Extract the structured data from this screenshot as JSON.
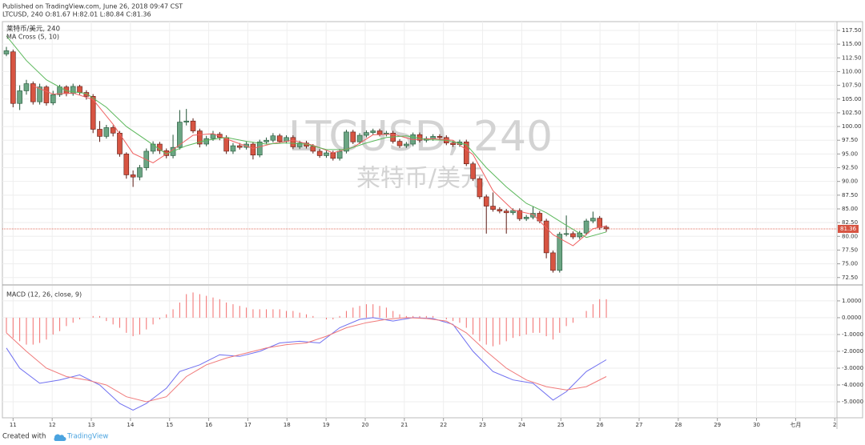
{
  "header": {
    "published": "Published on TradingView.com, June 26, 2018 09:47 CST",
    "ohlc": "LTCUSD, 240 O:81.67 H:82.01 L:80.84 C:81.36"
  },
  "footer": {
    "created": "Created with",
    "brand": "TradingView"
  },
  "chart_data": [
    {
      "type": "candlestick",
      "title": "莱特币/美元, 240",
      "indicator": "MA Cross (5, 10)",
      "watermark": [
        "LTCUSD, 240",
        "莱特币/美元"
      ],
      "up_color": "#6ba583",
      "down_color": "#d75442",
      "open": [
        113.2,
        113.6,
        104.2,
        106.5,
        107.8,
        104.5,
        107.2,
        104.3,
        105.8,
        107.2,
        106.0,
        107.3,
        106.2,
        105.5,
        99.5,
        98.2,
        99.8,
        98.8,
        95.0,
        91.2,
        90.8,
        92.5,
        95.5,
        96.8,
        95.6,
        94.7,
        96.2,
        100.8,
        101.0,
        99.2,
        96.8,
        97.8,
        98.6,
        98.0,
        95.5,
        96.5,
        96.2,
        96.8,
        94.8,
        97.2,
        97.5,
        98.3,
        97.3,
        98.0,
        96.3,
        97.0,
        96.4,
        95.5,
        94.7,
        95.2,
        94.2,
        95.5,
        99.0,
        97.2,
        98.4,
        98.9,
        99.2,
        98.6,
        98.8,
        97.3,
        96.5,
        96.8,
        98.5,
        97.5,
        97.8,
        98.2,
        98.0,
        97.0,
        96.7,
        97.2,
        93.2,
        90.5,
        87.2,
        85.5,
        84.9,
        84.6,
        84.3,
        84.7,
        83.2,
        83.5,
        84.2,
        82.8,
        77.0,
        73.8,
        80.4,
        80.5,
        79.9,
        80.6,
        82.8,
        83.3,
        81.67
      ],
      "high": [
        114.5,
        114.0,
        107.5,
        108.5,
        108.2,
        107.8,
        107.5,
        106.5,
        107.6,
        107.5,
        107.8,
        107.6,
        106.6,
        105.9,
        101.0,
        100.3,
        100.2,
        99.2,
        95.3,
        92.0,
        93.0,
        96.0,
        97.3,
        97.2,
        96.0,
        98.5,
        103.0,
        103.2,
        101.5,
        99.6,
        98.3,
        99.2,
        99.0,
        98.4,
        97.0,
        97.0,
        97.3,
        97.2,
        97.6,
        98.0,
        98.8,
        98.7,
        98.4,
        98.4,
        97.4,
        97.4,
        96.8,
        95.9,
        95.6,
        95.6,
        95.9,
        99.4,
        99.4,
        98.8,
        99.3,
        99.6,
        99.6,
        99.2,
        99.2,
        97.7,
        97.2,
        98.9,
        98.9,
        98.2,
        98.6,
        98.6,
        98.4,
        97.4,
        97.6,
        97.6,
        93.6,
        90.9,
        87.6,
        88.0,
        85.3,
        85.0,
        85.1,
        85.1,
        83.9,
        85.5,
        84.6,
        83.2,
        77.4,
        80.8,
        83.8,
        80.9,
        81.0,
        83.2,
        84.5,
        83.7,
        82.01
      ],
      "low": [
        112.8,
        103.5,
        103.0,
        105.8,
        104.0,
        104.0,
        103.8,
        103.9,
        105.4,
        105.5,
        105.6,
        105.8,
        104.9,
        98.8,
        97.2,
        97.8,
        98.2,
        94.5,
        90.5,
        89.0,
        90.2,
        92.0,
        95.0,
        95.0,
        94.2,
        94.2,
        95.8,
        100.2,
        98.8,
        96.2,
        96.4,
        97.4,
        97.5,
        95.0,
        95.0,
        95.8,
        95.8,
        94.0,
        94.4,
        96.8,
        97.1,
        96.9,
        96.9,
        95.9,
        95.9,
        96.0,
        95.1,
        94.3,
        94.3,
        93.8,
        93.8,
        95.1,
        96.8,
        96.8,
        98.0,
        98.5,
        98.2,
        98.2,
        96.9,
        96.1,
        96.1,
        96.4,
        97.1,
        97.1,
        97.4,
        97.6,
        96.6,
        96.3,
        96.3,
        92.8,
        90.1,
        86.8,
        80.5,
        84.5,
        84.2,
        80.5,
        83.9,
        82.8,
        82.8,
        83.1,
        82.4,
        76.0,
        73.4,
        73.4,
        80.0,
        79.5,
        79.5,
        80.2,
        82.4,
        81.2,
        80.84
      ],
      "close": [
        113.8,
        104.2,
        106.5,
        107.8,
        104.5,
        107.2,
        104.3,
        105.8,
        107.2,
        106.0,
        107.3,
        106.2,
        105.5,
        99.5,
        98.2,
        99.8,
        98.8,
        95.0,
        91.2,
        90.8,
        92.5,
        95.5,
        96.8,
        95.6,
        94.7,
        96.2,
        100.8,
        101.0,
        99.2,
        96.8,
        97.8,
        98.6,
        98.0,
        95.5,
        96.5,
        96.2,
        96.8,
        94.8,
        97.2,
        97.5,
        98.3,
        97.3,
        98.0,
        96.3,
        97.0,
        96.4,
        95.5,
        94.7,
        95.2,
        94.2,
        95.5,
        99.0,
        97.2,
        98.4,
        98.9,
        99.2,
        98.6,
        98.8,
        97.3,
        96.5,
        96.8,
        98.5,
        97.5,
        97.8,
        98.2,
        98.0,
        97.0,
        96.7,
        97.2,
        93.2,
        90.5,
        87.2,
        85.5,
        84.9,
        84.6,
        84.3,
        84.7,
        83.2,
        83.5,
        84.2,
        82.8,
        77.0,
        73.8,
        80.4,
        80.5,
        79.9,
        80.6,
        82.8,
        83.3,
        81.6,
        81.36
      ],
      "series": [
        {
          "color": "#f06060",
          "x": [
            4,
            7,
            10,
            13,
            16,
            19,
            22,
            25,
            28,
            31,
            34,
            37,
            40,
            43,
            46,
            49,
            52,
            55,
            58,
            61,
            64,
            67,
            70,
            73,
            76,
            79,
            82,
            85,
            88,
            90
          ],
          "values": [
            107.4,
            105.9,
            106.1,
            104.9,
            100.4,
            95.1,
            93.4,
            95.8,
            98.4,
            98.7,
            97.3,
            96.0,
            96.9,
            97.5,
            96.6,
            95.2,
            96.2,
            98.5,
            98.6,
            97.6,
            97.8,
            97.5,
            94.9,
            88.3,
            84.8,
            84.0,
            80.3,
            78.3,
            81.4,
            81.9
          ]
        },
        {
          "color": "#5cb85c",
          "x": [
            0,
            3,
            6,
            9,
            12,
            15,
            18,
            21,
            24,
            27,
            30,
            33,
            36,
            39,
            42,
            45,
            48,
            51,
            54,
            57,
            60,
            63,
            66,
            69,
            72,
            75,
            78,
            81,
            84,
            87,
            90
          ],
          "values": [
            116.5,
            112,
            108.5,
            106.5,
            106,
            103.5,
            100,
            97.5,
            95,
            96.5,
            97.5,
            98,
            97.3,
            96.8,
            97,
            96.8,
            95.8,
            95.8,
            97,
            98,
            98.3,
            97.6,
            97.5,
            96.7,
            92.5,
            89,
            86,
            84.3,
            82,
            79.8,
            80.8
          ]
        }
      ],
      "last_price": 81.36,
      "xlim": [
        -0.6,
        124.6
      ],
      "ylim": [
        71.3,
        119.1
      ],
      "yticks": [
        {
          "value": 72.5,
          "label": "72.50"
        },
        {
          "value": 75,
          "label": "75.00"
        },
        {
          "value": 77.5,
          "label": "77.50"
        },
        {
          "value": 80,
          "label": "80.00"
        },
        {
          "value": 82.5,
          "label": "82.50"
        },
        {
          "value": 85,
          "label": "85.00"
        },
        {
          "value": 87.5,
          "label": "87.50"
        },
        {
          "value": 90,
          "label": "90.00"
        },
        {
          "value": 92.5,
          "label": "92.50"
        },
        {
          "value": 95,
          "label": "95.00"
        },
        {
          "value": 97.5,
          "label": "97.50"
        },
        {
          "value": 100,
          "label": "100.00"
        },
        {
          "value": 102.5,
          "label": "102.50"
        },
        {
          "value": 105,
          "label": "105.00"
        },
        {
          "value": 107.5,
          "label": "107.50"
        },
        {
          "value": 110,
          "label": "110.00"
        },
        {
          "value": 112.5,
          "label": "112.50"
        },
        {
          "value": 115,
          "label": "115.00"
        },
        {
          "value": 117.5,
          "label": "117.50"
        }
      ],
      "grid": true
    },
    {
      "type": "macd",
      "title": "MACD (12, 26, close, 9)",
      "histogram": {
        "color": "#f26d6d",
        "values": [
          -0.9,
          -1.2,
          -1.4,
          -1.6,
          -1.6,
          -1.5,
          -1.3,
          -1.0,
          -0.8,
          -0.5,
          -0.3,
          -0.1,
          0.0,
          0.1,
          0.1,
          -0.2,
          -0.4,
          -0.6,
          -0.9,
          -1.1,
          -1.0,
          -0.7,
          -0.4,
          -0.1,
          0.2,
          0.5,
          0.9,
          1.4,
          1.5,
          1.4,
          1.3,
          1.2,
          1.1,
          0.9,
          0.8,
          0.7,
          0.6,
          0.5,
          0.5,
          0.5,
          0.5,
          0.5,
          0.4,
          0.4,
          0.3,
          0.2,
          0.1,
          0.0,
          -0.1,
          -0.1,
          0.1,
          0.4,
          0.6,
          0.7,
          0.8,
          0.8,
          0.7,
          0.6,
          0.4,
          0.2,
          0.1,
          0.1,
          0.1,
          0.1,
          0.1,
          0.0,
          -0.1,
          -0.2,
          -0.3,
          -0.6,
          -1.0,
          -1.4,
          -1.6,
          -1.7,
          -1.6,
          -1.4,
          -1.2,
          -1.1,
          -1.0,
          -0.9,
          -0.9,
          -1.1,
          -1.3,
          -0.9,
          -0.5,
          -0.3,
          0.0,
          0.4,
          0.8,
          1.1,
          1.1
        ]
      },
      "series": [
        {
          "color": "#6f6ff0",
          "x": [
            0,
            2,
            5,
            8,
            11,
            14,
            17,
            19,
            21,
            24,
            26,
            29,
            32,
            35,
            38,
            41,
            44,
            47,
            50,
            53,
            55,
            58,
            61,
            64,
            67,
            70,
            73,
            76,
            79,
            82,
            84,
            87,
            90
          ],
          "values": [
            -1.8,
            -3.0,
            -3.9,
            -3.7,
            -3.4,
            -4.0,
            -5.1,
            -5.5,
            -5.1,
            -4.2,
            -3.2,
            -2.8,
            -2.2,
            -2.3,
            -2.0,
            -1.5,
            -1.4,
            -1.5,
            -0.6,
            -0.1,
            0.0,
            -0.2,
            0.0,
            -0.05,
            -0.4,
            -2.0,
            -3.2,
            -3.7,
            -3.9,
            -4.9,
            -4.4,
            -3.2,
            -2.5
          ]
        },
        {
          "color": "#f07a7a",
          "x": [
            0,
            3,
            6,
            9,
            12,
            15,
            18,
            21,
            24,
            27,
            30,
            33,
            36,
            39,
            42,
            45,
            48,
            51,
            54,
            57,
            60,
            63,
            66,
            69,
            72,
            75,
            78,
            81,
            84,
            87,
            90
          ],
          "values": [
            -0.9,
            -2.0,
            -3.0,
            -3.5,
            -3.7,
            -4.0,
            -4.7,
            -5.0,
            -4.7,
            -3.5,
            -2.8,
            -2.4,
            -2.1,
            -1.8,
            -1.6,
            -1.5,
            -1.1,
            -0.6,
            -0.3,
            -0.1,
            0.0,
            -0.05,
            -0.2,
            -0.9,
            -2.0,
            -3.0,
            -3.7,
            -4.1,
            -4.3,
            -4.1,
            -3.5
          ]
        }
      ],
      "xlim": [
        -0.6,
        124.6
      ],
      "ylim": [
        -5.95,
        1.9
      ],
      "yticks": [
        {
          "value": 1,
          "label": "1.0000"
        },
        {
          "value": 0,
          "label": "0.0000"
        },
        {
          "value": -1,
          "label": "-1.0000"
        },
        {
          "value": -2,
          "label": "-2.0000"
        },
        {
          "value": -3,
          "label": "-3.0000"
        },
        {
          "value": -4,
          "label": "-4.0000"
        },
        {
          "value": -5,
          "label": "-5.0000"
        }
      ],
      "xticks": [
        {
          "value": 1,
          "label": "11"
        },
        {
          "value": 6.87,
          "label": "12"
        },
        {
          "value": 12.74,
          "label": "13"
        },
        {
          "value": 18.61,
          "label": "14"
        },
        {
          "value": 24.48,
          "label": "15"
        },
        {
          "value": 30.35,
          "label": "16"
        },
        {
          "value": 36.22,
          "label": "17"
        },
        {
          "value": 42.09,
          "label": "18"
        },
        {
          "value": 47.96,
          "label": "19"
        },
        {
          "value": 53.83,
          "label": "20"
        },
        {
          "value": 59.7,
          "label": "21"
        },
        {
          "value": 65.57,
          "label": "22"
        },
        {
          "value": 71.44,
          "label": "23"
        },
        {
          "value": 77.31,
          "label": "24"
        },
        {
          "value": 83.18,
          "label": "25"
        },
        {
          "value": 89.05,
          "label": "26"
        },
        {
          "value": 94.92,
          "label": "27"
        },
        {
          "value": 100.79,
          "label": "28"
        },
        {
          "value": 106.66,
          "label": "29"
        },
        {
          "value": 112.53,
          "label": "30"
        },
        {
          "value": 118.4,
          "label": "七月"
        },
        {
          "value": 124.27,
          "label": "2"
        }
      ],
      "grid": true
    }
  ]
}
